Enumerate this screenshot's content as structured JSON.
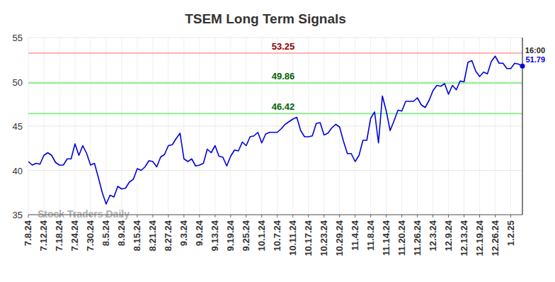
{
  "chart_data": {
    "type": "line",
    "title": "TSEM Long Term Signals",
    "categories": [
      "7.8.24",
      null,
      null,
      null,
      "7.12.24",
      null,
      null,
      null,
      "7.18.24",
      null,
      null,
      null,
      "7.24.24",
      null,
      null,
      null,
      "7.30.24",
      null,
      null,
      null,
      "8.5.24",
      null,
      null,
      null,
      "8.9.24",
      null,
      null,
      null,
      "8.15.24",
      null,
      null,
      null,
      "8.21.24",
      null,
      null,
      null,
      "8.27.24",
      null,
      null,
      null,
      "9.3.24",
      null,
      null,
      null,
      "9.9.24",
      null,
      null,
      null,
      "9.13.24",
      null,
      null,
      null,
      "9.19.24",
      null,
      null,
      null,
      "9.25.24",
      null,
      null,
      null,
      "10.1.24",
      null,
      null,
      null,
      "10.7.24",
      null,
      null,
      null,
      "10.11.24",
      null,
      null,
      null,
      "10.17.24",
      null,
      null,
      null,
      "10.23.24",
      null,
      null,
      null,
      "10.29.24",
      null,
      null,
      null,
      "11.4.24",
      null,
      null,
      null,
      "11.8.24",
      null,
      null,
      null,
      "11.14.24",
      null,
      null,
      null,
      "11.20.24",
      null,
      null,
      null,
      "11.26.24",
      null,
      null,
      null,
      "12.3.24",
      null,
      null,
      null,
      "12.9.24",
      null,
      null,
      null,
      "12.13.24",
      null,
      null,
      null,
      "12.19.24",
      null,
      null,
      null,
      "12.26.24",
      null,
      null,
      null,
      "1.2.25",
      null,
      null,
      null
    ],
    "values": [
      41.0,
      40.6,
      40.8,
      40.7,
      41.7,
      42.0,
      41.7,
      40.9,
      40.6,
      40.6,
      41.3,
      41.3,
      43.0,
      41.7,
      42.8,
      41.9,
      40.6,
      40.8,
      39.2,
      37.5,
      36.2,
      37.2,
      37.0,
      38.2,
      37.9,
      38.0,
      38.7,
      39.0,
      40.2,
      40.0,
      40.4,
      41.1,
      41.0,
      40.4,
      41.5,
      41.8,
      42.8,
      42.9,
      43.6,
      44.2,
      41.3,
      41.0,
      41.3,
      40.5,
      40.6,
      40.8,
      42.4,
      42.0,
      42.8,
      41.6,
      41.5,
      40.5,
      41.6,
      42.3,
      42.2,
      43.2,
      42.8,
      43.8,
      43.9,
      44.3,
      43.1,
      44.1,
      44.3,
      44.3,
      44.3,
      44.7,
      45.2,
      45.5,
      45.8,
      46.0,
      44.5,
      43.8,
      43.8,
      43.9,
      45.3,
      45.4,
      44.0,
      44.2,
      44.8,
      45.2,
      44.9,
      43.3,
      41.9,
      41.9,
      41.0,
      41.7,
      43.4,
      43.4,
      45.9,
      46.6,
      43.1,
      48.4,
      46.7,
      44.5,
      45.6,
      46.8,
      46.7,
      47.8,
      47.8,
      47.8,
      48.2,
      47.4,
      47.1,
      47.9,
      49.0,
      49.6,
      49.5,
      49.8,
      48.6,
      49.6,
      49.1,
      50.1,
      50.0,
      52.2,
      52.4,
      51.2,
      50.6,
      51.1,
      50.9,
      52.3,
      52.9,
      52.1,
      52.1,
      51.5,
      51.5,
      52.1,
      52.0,
      51.79
    ],
    "color": "#0000dd",
    "ylim": [
      35,
      55
    ],
    "yticks": [
      35,
      40,
      45,
      50,
      55
    ],
    "grid": true,
    "reference_lines": [
      {
        "value": 53.25,
        "label": "53.25",
        "color": "#ffb3b3",
        "label_color": "#8b0000"
      },
      {
        "value": 49.86,
        "label": "49.86",
        "color": "#90ee90",
        "label_color": "#006400"
      },
      {
        "value": 46.42,
        "label": "46.42",
        "color": "#90ee90",
        "label_color": "#006400"
      }
    ],
    "end_label": {
      "time": "16:00",
      "value": 51.79
    },
    "watermark": "Stock Traders Daily"
  }
}
